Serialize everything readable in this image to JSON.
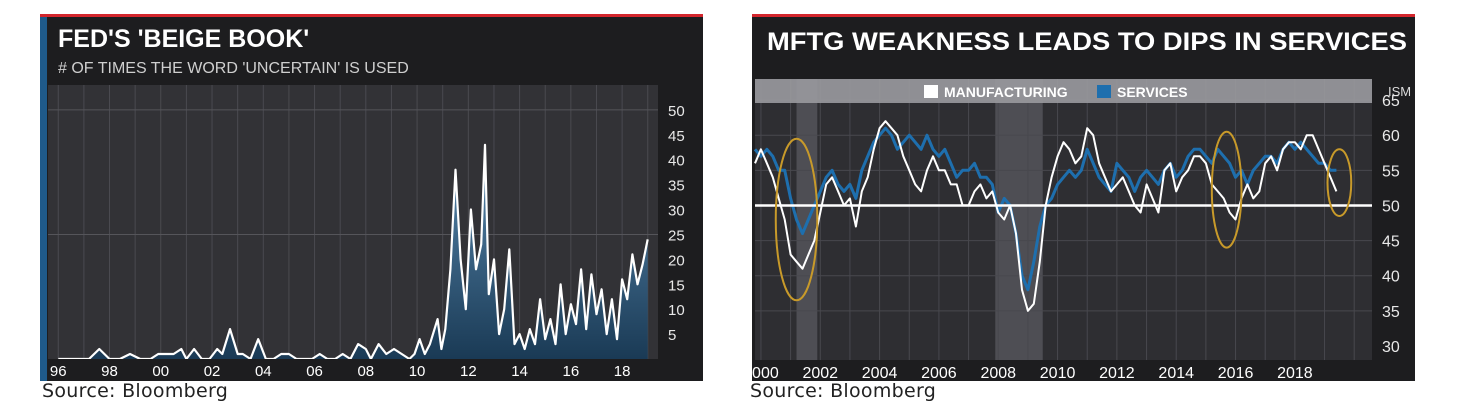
{
  "charts": {
    "left_source": "Source: Bloomberg",
    "right_source": "Source: Bloomberg"
  },
  "chart_data": [
    {
      "type": "area",
      "title": "FED'S 'BEIGE BOOK'",
      "subtitle": "# OF TIMES THE WORD 'UNCERTAIN' IS USED",
      "xlabel": "",
      "ylabel": "",
      "x_tick_labels": [
        "96",
        "98",
        "00",
        "02",
        "04",
        "06",
        "08",
        "10",
        "12",
        "14",
        "16",
        "18"
      ],
      "x_ticks": [
        1996,
        1998,
        2000,
        2002,
        2004,
        2006,
        2008,
        2010,
        2012,
        2014,
        2016,
        2018
      ],
      "y_ticks": [
        5,
        10,
        15,
        20,
        25,
        30,
        35,
        40,
        45,
        50
      ],
      "xlim": [
        1995.6,
        2019.4
      ],
      "ylim": [
        0,
        55
      ],
      "grid": true,
      "colors": {
        "line": "#ffffff",
        "fill_top": "#5a8ab0",
        "fill_bottom": "#1a3a55"
      },
      "series": [
        {
          "x": [
            1996.0,
            1996.6,
            1997.2,
            1997.6,
            1998.0,
            1998.4,
            1998.8,
            1999.2,
            1999.6,
            1999.9,
            2000.2,
            2000.5,
            2000.8,
            2001.0,
            2001.3,
            2001.6,
            2001.9,
            2002.2,
            2002.4,
            2002.7,
            2003.0,
            2003.2,
            2003.5,
            2003.8,
            2004.1,
            2004.4,
            2004.7,
            2005.0,
            2005.3,
            2005.6,
            2005.9,
            2006.2,
            2006.5,
            2006.8,
            2007.1,
            2007.4,
            2007.7,
            2008.0,
            2008.2,
            2008.5,
            2008.8,
            2009.1,
            2009.4,
            2009.7,
            2009.9,
            2010.1,
            2010.3,
            2010.5,
            2010.8,
            2010.95,
            2011.1,
            2011.3,
            2011.5,
            2011.7,
            2011.9,
            2012.1,
            2012.3,
            2012.5,
            2012.65,
            2012.8,
            2013.0,
            2013.2,
            2013.4,
            2013.6,
            2013.8,
            2014.0,
            2014.2,
            2014.4,
            2014.6,
            2014.8,
            2015.0,
            2015.2,
            2015.4,
            2015.6,
            2015.8,
            2016.0,
            2016.2,
            2016.4,
            2016.6,
            2016.8,
            2017.0,
            2017.2,
            2017.4,
            2017.6,
            2017.8,
            2018.0,
            2018.2,
            2018.4,
            2018.6,
            2018.8,
            2019.0
          ],
          "values": [
            0,
            0,
            0,
            2,
            0,
            0,
            1,
            0,
            0,
            1,
            1,
            1,
            2,
            0,
            2,
            0,
            0,
            2,
            1,
            6,
            1,
            1,
            0,
            4,
            0,
            0,
            1,
            1,
            0,
            0,
            0,
            1,
            0,
            0,
            1,
            0,
            3,
            2,
            0,
            3,
            1,
            2,
            1,
            0,
            1,
            4,
            1,
            3,
            8,
            2,
            6,
            18,
            38,
            20,
            10,
            30,
            18,
            23,
            43,
            13,
            20,
            5,
            10,
            22,
            3,
            5,
            2,
            6,
            3,
            12,
            4,
            8,
            3,
            15,
            5,
            11,
            7,
            18,
            6,
            17,
            9,
            14,
            5,
            12,
            4,
            16,
            12,
            21,
            15,
            19,
            24
          ]
        }
      ]
    },
    {
      "type": "line",
      "title": "MFTG WEAKNESS LEADS TO DIPS IN SERVICES",
      "xlabel": "",
      "ylabel": "ISM",
      "x_tick_labels": [
        "2000",
        "2002",
        "2004",
        "2006",
        "2008",
        "2010",
        "2012",
        "2014",
        "2016",
        "2018"
      ],
      "x_ticks": [
        2000,
        2002,
        2004,
        2006,
        2008,
        2010,
        2012,
        2014,
        2016,
        2018
      ],
      "y_ticks": [
        30,
        35,
        40,
        45,
        50,
        55,
        60,
        65
      ],
      "xlim": [
        1999.8,
        2020.6
      ],
      "ylim": [
        28,
        68
      ],
      "grid": true,
      "legend": {
        "position": "top",
        "entries": [
          {
            "name": "MANUFACTURING",
            "color": "#ffffff"
          },
          {
            "name": "SERVICES",
            "color": "#1e6fae"
          }
        ]
      },
      "recessions": [
        [
          2001.2,
          2001.9
        ],
        [
          2007.9,
          2009.5
        ]
      ],
      "reference_line": 50,
      "highlight_circles": [
        [
          2000.5,
          2001.9,
          36.5,
          59.5
        ],
        [
          2015.2,
          2016.2,
          44,
          60.5
        ],
        [
          2019.1,
          2019.9,
          48.5,
          58
        ]
      ],
      "series": [
        {
          "name": "MANUFACTURING",
          "x": [
            1999.8,
            2000.0,
            2000.2,
            2000.4,
            2000.6,
            2000.8,
            2001.0,
            2001.2,
            2001.4,
            2001.6,
            2001.8,
            2002.0,
            2002.2,
            2002.4,
            2002.6,
            2002.8,
            2003.0,
            2003.2,
            2003.4,
            2003.6,
            2003.8,
            2004.0,
            2004.2,
            2004.4,
            2004.6,
            2004.8,
            2005.0,
            2005.2,
            2005.4,
            2005.6,
            2005.8,
            2006.0,
            2006.2,
            2006.4,
            2006.6,
            2006.8,
            2007.0,
            2007.2,
            2007.4,
            2007.6,
            2007.8,
            2008.0,
            2008.2,
            2008.4,
            2008.6,
            2008.8,
            2009.0,
            2009.2,
            2009.4,
            2009.6,
            2009.8,
            2010.0,
            2010.2,
            2010.4,
            2010.6,
            2010.8,
            2011.0,
            2011.2,
            2011.4,
            2011.6,
            2011.8,
            2012.0,
            2012.2,
            2012.4,
            2012.6,
            2012.8,
            2013.0,
            2013.2,
            2013.4,
            2013.6,
            2013.8,
            2014.0,
            2014.2,
            2014.4,
            2014.6,
            2014.8,
            2015.0,
            2015.2,
            2015.4,
            2015.6,
            2015.8,
            2016.0,
            2016.2,
            2016.4,
            2016.6,
            2016.8,
            2017.0,
            2017.2,
            2017.4,
            2017.6,
            2017.8,
            2018.0,
            2018.2,
            2018.4,
            2018.6,
            2018.8,
            2019.0,
            2019.2,
            2019.4
          ],
          "values": [
            56,
            58,
            56,
            54,
            51,
            48,
            43,
            42,
            41,
            43,
            45,
            49,
            53,
            54,
            52,
            50,
            51,
            47,
            52,
            54,
            58,
            61,
            62,
            61,
            60,
            57,
            55,
            53,
            52,
            55,
            57,
            55,
            55,
            53,
            53,
            50,
            50,
            52,
            53,
            51,
            52,
            49,
            48,
            50,
            46,
            38,
            35,
            36,
            42,
            50,
            54,
            57,
            59,
            58,
            56,
            57,
            61,
            60,
            56,
            54,
            52,
            53,
            54,
            52,
            50,
            49,
            53,
            51,
            49,
            55,
            56,
            52,
            54,
            55,
            57,
            57,
            56,
            53,
            52,
            51,
            49,
            48,
            51,
            53,
            51,
            52,
            56,
            57,
            55,
            58,
            59,
            59,
            58,
            60,
            60,
            58,
            56,
            54,
            52
          ]
        },
        {
          "name": "SERVICES",
          "x": [
            1999.8,
            2000.0,
            2000.2,
            2000.4,
            2000.6,
            2000.8,
            2001.0,
            2001.2,
            2001.4,
            2001.6,
            2001.8,
            2002.0,
            2002.2,
            2002.4,
            2002.6,
            2002.8,
            2003.0,
            2003.2,
            2003.4,
            2003.6,
            2003.8,
            2004.0,
            2004.2,
            2004.4,
            2004.6,
            2004.8,
            2005.0,
            2005.2,
            2005.4,
            2005.6,
            2005.8,
            2006.0,
            2006.2,
            2006.4,
            2006.6,
            2006.8,
            2007.0,
            2007.2,
            2007.4,
            2007.6,
            2007.8,
            2008.0,
            2008.2,
            2008.4,
            2008.6,
            2008.8,
            2009.0,
            2009.2,
            2009.4,
            2009.6,
            2009.8,
            2010.0,
            2010.2,
            2010.4,
            2010.6,
            2010.8,
            2011.0,
            2011.2,
            2011.4,
            2011.6,
            2011.8,
            2012.0,
            2012.2,
            2012.4,
            2012.6,
            2012.8,
            2013.0,
            2013.2,
            2013.4,
            2013.6,
            2013.8,
            2014.0,
            2014.2,
            2014.4,
            2014.6,
            2014.8,
            2015.0,
            2015.2,
            2015.4,
            2015.6,
            2015.8,
            2016.0,
            2016.2,
            2016.4,
            2016.6,
            2016.8,
            2017.0,
            2017.2,
            2017.4,
            2017.6,
            2017.8,
            2018.0,
            2018.2,
            2018.4,
            2018.6,
            2018.8,
            2019.0,
            2019.2,
            2019.4
          ],
          "values": [
            58,
            57,
            58,
            57,
            55,
            55,
            51,
            48,
            46,
            48,
            50,
            52,
            54,
            55,
            53,
            52,
            53,
            51,
            55,
            57,
            59,
            60,
            61,
            60,
            58,
            59,
            60,
            59,
            58,
            60,
            58,
            57,
            58,
            56,
            54,
            55,
            55,
            56,
            54,
            54,
            53,
            49,
            51,
            50,
            46,
            40,
            38,
            42,
            47,
            50,
            51,
            53,
            54,
            55,
            54,
            55,
            58,
            56,
            54,
            53,
            52,
            56,
            55,
            54,
            52,
            54,
            55,
            54,
            53,
            55,
            56,
            54,
            55,
            57,
            58,
            58,
            57,
            56,
            58,
            57,
            56,
            54,
            55,
            53,
            55,
            56,
            57,
            57,
            56,
            58,
            59,
            58,
            59,
            58,
            57,
            56,
            56,
            55,
            55
          ]
        }
      ]
    }
  ]
}
